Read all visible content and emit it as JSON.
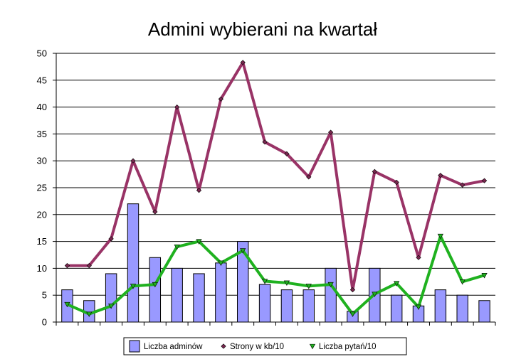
{
  "chart_data": {
    "type": "bar",
    "title": "Admini wybierani na kwartał",
    "xlabel": "",
    "ylabel": "",
    "ylim": [
      0,
      50
    ],
    "yticks": [
      0,
      5,
      10,
      15,
      20,
      25,
      30,
      35,
      40,
      45,
      50
    ],
    "grid": true,
    "legend_position": "bottom",
    "x": [
      1,
      2,
      3,
      4,
      5,
      6,
      7,
      8,
      9,
      10,
      11,
      12,
      13,
      14,
      15,
      16,
      17,
      18,
      19,
      20
    ],
    "series": [
      {
        "name": "Liczba adminów",
        "type": "bar",
        "color": "#9999ff",
        "values": [
          6,
          4,
          9,
          22,
          12,
          10,
          9,
          11,
          15,
          7,
          6,
          6,
          10,
          2,
          10,
          5,
          3,
          6,
          5,
          4
        ]
      },
      {
        "name": "Strony w kb/10",
        "type": "line",
        "color": "#993366",
        "marker": "diamond",
        "values": [
          10.5,
          10.5,
          15.5,
          30,
          20.5,
          40,
          24.5,
          41.5,
          48.3,
          33.5,
          31.3,
          27,
          35.3,
          6,
          28,
          26,
          12,
          27.3,
          25.5,
          26.3
        ]
      },
      {
        "name": "Liczba pytań/10",
        "type": "line",
        "color": "#1fb11f",
        "marker": "triangle-down",
        "values": [
          3.3,
          1.5,
          3,
          6.7,
          7,
          14,
          15,
          11,
          13.3,
          7.6,
          7.3,
          6.7,
          7,
          1.5,
          5.2,
          7.2,
          2.8,
          16,
          7.5,
          8.7
        ]
      }
    ]
  }
}
